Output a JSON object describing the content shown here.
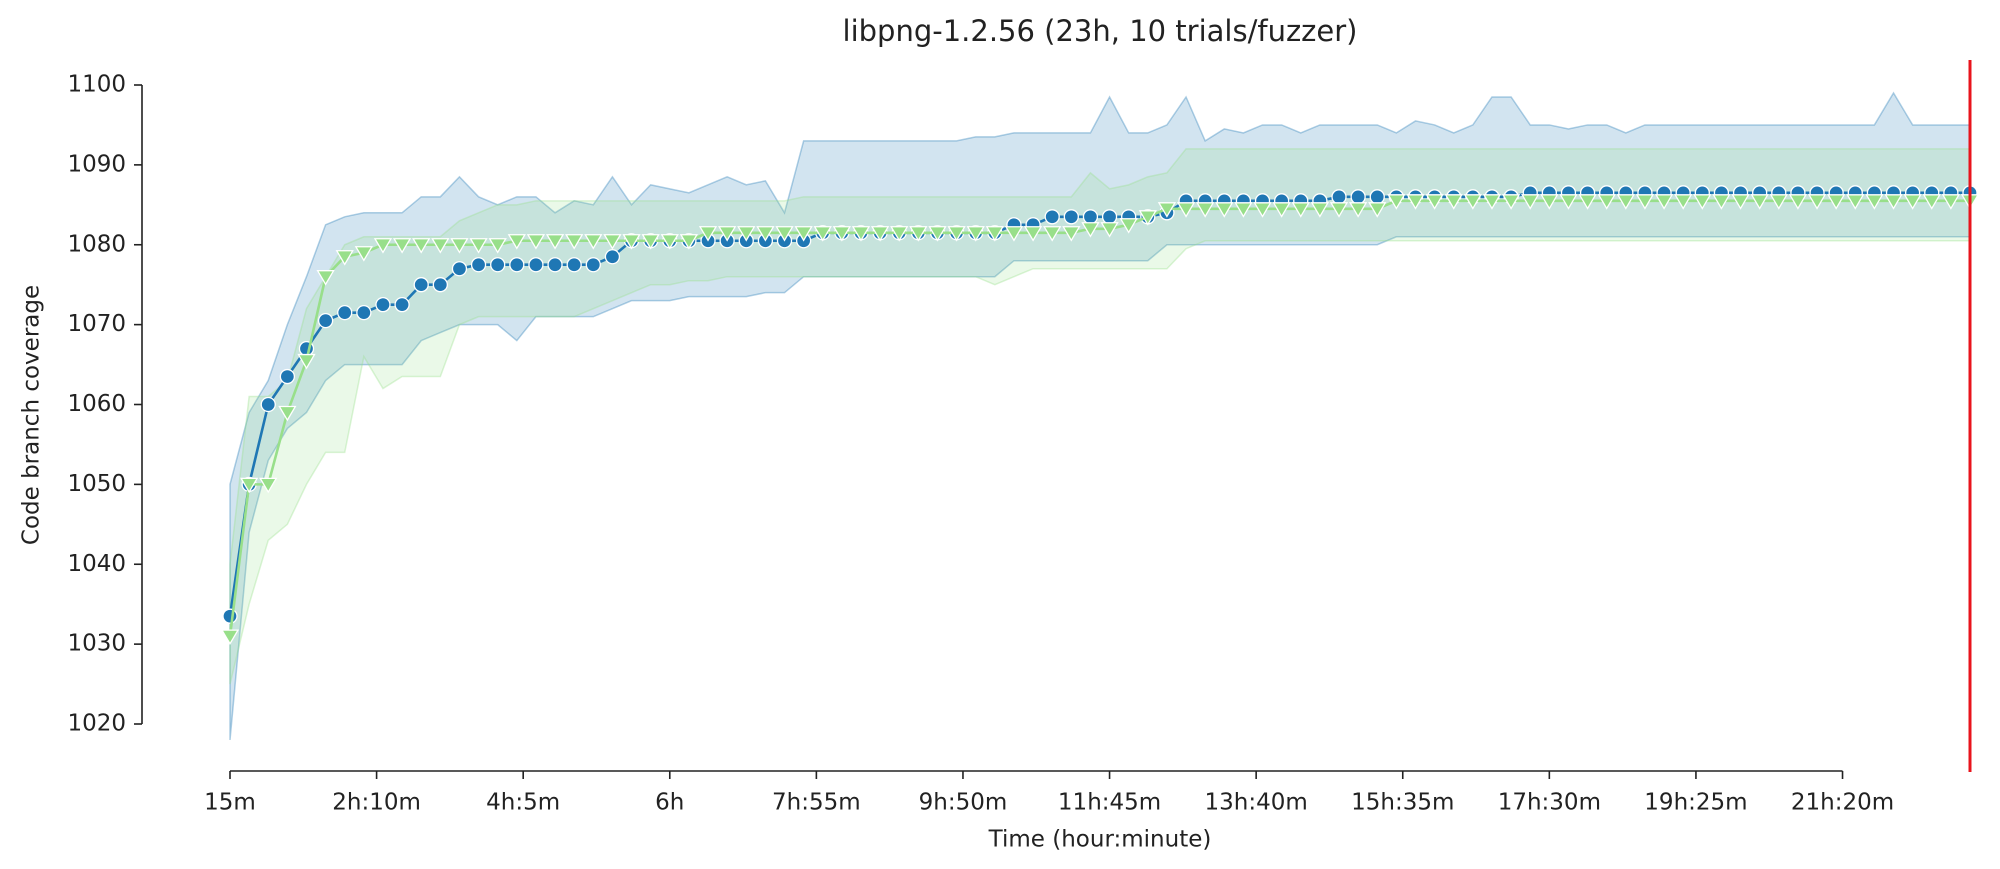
{
  "chart_data": {
    "type": "line",
    "title": "libpng-1.2.56 (23h, 10 trials/fuzzer)",
    "xlabel": "Time (hour:minute)",
    "ylabel": "Code branch coverage",
    "x": [
      15,
      30,
      45,
      60,
      75,
      90,
      105,
      120,
      135,
      150,
      165,
      180,
      195,
      210,
      225,
      240,
      255,
      270,
      285,
      300,
      315,
      330,
      345,
      360,
      375,
      390,
      405,
      420,
      435,
      450,
      465,
      480,
      495,
      510,
      525,
      540,
      555,
      570,
      585,
      600,
      615,
      630,
      645,
      660,
      675,
      690,
      705,
      720,
      735,
      750,
      765,
      780,
      795,
      810,
      825,
      840,
      855,
      870,
      885,
      900,
      915,
      930,
      945,
      960,
      975,
      990,
      1005,
      1020,
      1035,
      1050,
      1065,
      1080,
      1095,
      1110,
      1125,
      1140,
      1155,
      1170,
      1185,
      1200,
      1215,
      1230,
      1245,
      1260,
      1275,
      1290,
      1305,
      1320,
      1335,
      1350,
      1365,
      1380
    ],
    "xlim": [
      15,
      1380
    ],
    "xticks": [
      {
        "value": 15,
        "label": "15m"
      },
      {
        "value": 130,
        "label": "2h:10m"
      },
      {
        "value": 245,
        "label": "4h:5m"
      },
      {
        "value": 360,
        "label": "6h"
      },
      {
        "value": 475,
        "label": "7h:55m"
      },
      {
        "value": 590,
        "label": "9h:50m"
      },
      {
        "value": 705,
        "label": "11h:45m"
      },
      {
        "value": 820,
        "label": "13h:40m"
      },
      {
        "value": 935,
        "label": "15h:35m"
      },
      {
        "value": 1050,
        "label": "17h:30m"
      },
      {
        "value": 1165,
        "label": "19h:25m"
      },
      {
        "value": 1280,
        "label": "21h:20m"
      }
    ],
    "ylim": [
      1020,
      1100
    ],
    "yticks": [
      1020,
      1030,
      1040,
      1050,
      1060,
      1070,
      1080,
      1090,
      1100
    ],
    "vline": {
      "x": 1380,
      "color": "#e8141c"
    },
    "series": [
      {
        "color": "#1f77b4",
        "band_color": "#1f77b4",
        "marker": "circle",
        "values": [
          1033.5,
          1050,
          1060,
          1063.5,
          1067,
          1070.5,
          1071.5,
          1071.5,
          1072.5,
          1072.5,
          1075,
          1075,
          1077,
          1077.5,
          1077.5,
          1077.5,
          1077.5,
          1077.5,
          1077.5,
          1077.5,
          1078.5,
          1080.5,
          1080.5,
          1080.5,
          1080.5,
          1080.5,
          1080.5,
          1080.5,
          1080.5,
          1080.5,
          1080.5,
          1081.5,
          1081.5,
          1081.5,
          1081.5,
          1081.5,
          1081.5,
          1081.5,
          1081.5,
          1081.5,
          1081.5,
          1082.5,
          1082.5,
          1083.5,
          1083.5,
          1083.5,
          1083.5,
          1083.5,
          1083.5,
          1084,
          1085.5,
          1085.5,
          1085.5,
          1085.5,
          1085.5,
          1085.5,
          1085.5,
          1085.5,
          1086,
          1086,
          1086,
          1086,
          1086,
          1086,
          1086,
          1086,
          1086,
          1086,
          1086.5,
          1086.5,
          1086.5,
          1086.5,
          1086.5,
          1086.5,
          1086.5,
          1086.5,
          1086.5,
          1086.5,
          1086.5,
          1086.5,
          1086.5,
          1086.5,
          1086.5,
          1086.5,
          1086.5,
          1086.5,
          1086.5,
          1086.5,
          1086.5,
          1086.5,
          1086.5,
          1086.5
        ],
        "lower": [
          1018,
          1044,
          1053,
          1057,
          1059,
          1063,
          1065,
          1065,
          1065,
          1065,
          1068,
          1069,
          1070,
          1070,
          1070,
          1068,
          1071,
          1071,
          1071,
          1071,
          1072,
          1073,
          1073,
          1073,
          1073.5,
          1073.5,
          1073.5,
          1073.5,
          1074,
          1074,
          1076,
          1076,
          1076,
          1076,
          1076,
          1076,
          1076,
          1076,
          1076,
          1076,
          1076,
          1078,
          1078,
          1078,
          1078,
          1078,
          1078,
          1078,
          1078,
          1080,
          1080,
          1080,
          1080,
          1080,
          1080,
          1080,
          1080,
          1080,
          1080,
          1080,
          1080,
          1081,
          1081,
          1081,
          1081,
          1081,
          1081,
          1081,
          1081,
          1081,
          1081,
          1081,
          1081,
          1081,
          1081,
          1081,
          1081,
          1081,
          1081,
          1081,
          1081,
          1081,
          1081,
          1081,
          1081,
          1081,
          1081,
          1081,
          1081,
          1081,
          1081,
          1081
        ],
        "upper": [
          1050,
          1059,
          1063,
          1070,
          1076,
          1082.5,
          1083.5,
          1084,
          1084,
          1084,
          1086,
          1086,
          1088.5,
          1086,
          1085,
          1086,
          1086,
          1084,
          1085.5,
          1085,
          1088.5,
          1085,
          1087.5,
          1087,
          1086.5,
          1087.5,
          1088.5,
          1087.5,
          1088,
          1084,
          1093,
          1093,
          1093,
          1093,
          1093,
          1093,
          1093,
          1093,
          1093,
          1093.5,
          1093.5,
          1094,
          1094,
          1094,
          1094,
          1094,
          1098.5,
          1094,
          1094,
          1095,
          1098.5,
          1093,
          1094.5,
          1094,
          1095,
          1095,
          1094,
          1095,
          1095,
          1095,
          1095,
          1094,
          1095.5,
          1095,
          1094,
          1095,
          1098.5,
          1098.5,
          1095,
          1095,
          1094.5,
          1095,
          1095,
          1094,
          1095,
          1095,
          1095,
          1095,
          1095,
          1095,
          1095,
          1095,
          1095,
          1095,
          1095,
          1095,
          1095,
          1099,
          1095,
          1095,
          1095,
          1095
        ]
      },
      {
        "color": "#98df8a",
        "band_color": "#98df8a",
        "marker": "triangle",
        "values": [
          1031,
          1050,
          1050,
          1059,
          1065.5,
          1076,
          1078.5,
          1079,
          1080,
          1080,
          1080,
          1080,
          1080,
          1080,
          1080,
          1080.5,
          1080.5,
          1080.5,
          1080.5,
          1080.5,
          1080.5,
          1080.5,
          1080.5,
          1080.5,
          1080.5,
          1081.5,
          1081.5,
          1081.5,
          1081.5,
          1081.5,
          1081.5,
          1081.5,
          1081.5,
          1081.5,
          1081.5,
          1081.5,
          1081.5,
          1081.5,
          1081.5,
          1081.5,
          1081.5,
          1081.5,
          1081.5,
          1081.5,
          1081.5,
          1082,
          1082,
          1082.5,
          1083.5,
          1084.5,
          1084.5,
          1084.5,
          1084.5,
          1084.5,
          1084.5,
          1084.5,
          1084.5,
          1084.5,
          1084.5,
          1084.5,
          1084.5,
          1085.5,
          1085.5,
          1085.5,
          1085.5,
          1085.5,
          1085.5,
          1085.5,
          1085.5,
          1085.5,
          1085.5,
          1085.5,
          1085.5,
          1085.5,
          1085.5,
          1085.5,
          1085.5,
          1085.5,
          1085.5,
          1085.5,
          1085.5,
          1085.5,
          1085.5,
          1085.5,
          1085.5,
          1085.5,
          1085.5,
          1085.5,
          1085.5,
          1085.5,
          1085.5,
          1085.5
        ],
        "lower": [
          1025,
          1035,
          1043,
          1045,
          1050,
          1054,
          1054,
          1066,
          1062,
          1063.5,
          1063.5,
          1063.5,
          1070,
          1071,
          1071,
          1071,
          1071,
          1071,
          1071,
          1072,
          1073,
          1074,
          1075,
          1075,
          1075.5,
          1075.5,
          1076,
          1076,
          1076,
          1076,
          1076,
          1076,
          1076,
          1076,
          1076,
          1076,
          1076,
          1076,
          1076,
          1076,
          1075,
          1076,
          1077,
          1077,
          1077,
          1077,
          1077,
          1077,
          1077,
          1077,
          1079.5,
          1080.5,
          1080.5,
          1080.5,
          1080.5,
          1080.5,
          1080.5,
          1080.5,
          1080.5,
          1080.5,
          1080.5,
          1080.5,
          1080.5,
          1080.5,
          1080.5,
          1080.5,
          1080.5,
          1080.5,
          1080.5,
          1080.5,
          1080.5,
          1080.5,
          1080.5,
          1080.5,
          1080.5,
          1080.5,
          1080.5,
          1080.5,
          1080.5,
          1080.5,
          1080.5,
          1080.5,
          1080.5,
          1080.5,
          1080.5,
          1080.5,
          1080.5,
          1080.5,
          1080.5,
          1080.5,
          1080.5,
          1080.5
        ],
        "upper": [
          1040,
          1061,
          1061,
          1063,
          1072,
          1076,
          1080,
          1081,
          1081,
          1081,
          1081,
          1081,
          1083,
          1084,
          1085,
          1085,
          1085.5,
          1085.5,
          1085.5,
          1085.5,
          1085.5,
          1085.5,
          1085.5,
          1085.5,
          1085.5,
          1085.5,
          1085.5,
          1085.5,
          1085.5,
          1085.5,
          1086,
          1086,
          1086,
          1086,
          1086,
          1086,
          1086,
          1086,
          1086,
          1086,
          1086,
          1086,
          1086,
          1086,
          1086,
          1089,
          1087,
          1087.5,
          1088.5,
          1089,
          1092,
          1092,
          1092,
          1092,
          1092,
          1092,
          1092,
          1092,
          1092,
          1092,
          1092,
          1092,
          1092,
          1092,
          1092,
          1092,
          1092,
          1092,
          1092,
          1092,
          1092,
          1092,
          1092,
          1092,
          1092,
          1092,
          1092,
          1092,
          1092,
          1092,
          1092,
          1092,
          1092,
          1092,
          1092,
          1092,
          1092,
          1092,
          1092,
          1092,
          1092,
          1092
        ]
      }
    ]
  }
}
